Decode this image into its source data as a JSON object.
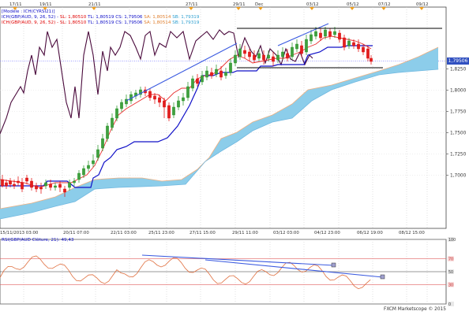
{
  "top_dates": [
    "17/11",
    "19/11",
    "21/11",
    "27/11",
    "29/11",
    "Dec",
    "03/12",
    "05/12",
    "07/12",
    "09/12"
  ],
  "legend": {
    "line1": "[Modèle : ICH(CYRSI21)]",
    "line2_prefix": "ICH(GBP/AUD, 9, 26, 52) -",
    "line2_sl": "SL: 1,80510",
    "line2_tl": "TL: 1,80519",
    "line2_cs": "CS: 1,79506",
    "line2_sa": "SA: 1,80514",
    "line2_sb": "SB: 1,79319",
    "line3_prefix": "ICH(GBP/AUD, 9, 26, 52) -",
    "line3_sl": "SL: 1,80510",
    "line3_tl": "TL: 1,80519",
    "line3_cs": "CS: 1,79506",
    "line3_sa": "SA: 1,80514",
    "line3_sb": "SB: 1,79319"
  },
  "y_axis": [
    "1,8250",
    "1,8000",
    "1,7750",
    "1,7500",
    "1,7250",
    "1,7000"
  ],
  "price_tag": "1,79506",
  "bottom_dates": [
    "15/11/2013 03:00",
    "20/11 07:00",
    "22/11 03:00",
    "25/11 23:00",
    "27/11 15:00",
    "29/11 11:00",
    "03/12 03:00",
    "04/12 23:00",
    "06/12 19:00",
    "08/12 15:00"
  ],
  "rsi": {
    "label": "RSI(GBP/AUD Clôture, 21): 49,43",
    "levels": [
      "100",
      "70",
      "50",
      "30",
      "0"
    ]
  },
  "footer": "FXCM Marketscope © 2015",
  "colors": {
    "bull": "#1e8f1e",
    "bear": "#e00000",
    "kijun": "#1010c8",
    "tenkan": "#e83030",
    "chikou": "#4a0a3c",
    "cloud": "#8ccdea",
    "senkou_b": "#f0b080",
    "trendline": "#3a5ae0",
    "rsi_line": "#e07040"
  }
}
